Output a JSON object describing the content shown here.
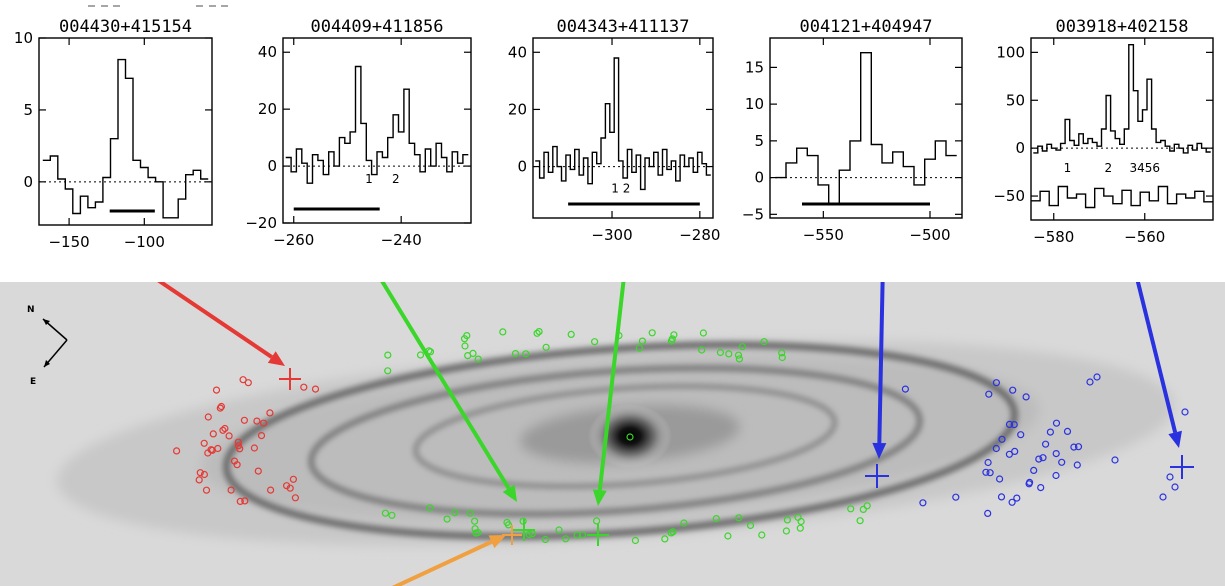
{
  "chart_data": [
    {
      "type": "line",
      "title": "004430+415154",
      "xlim": [
        -170,
        -55
      ],
      "ylim": [
        -3,
        10
      ],
      "xticks": [
        -150,
        -100
      ],
      "xtick_labels": [
        "−150",
        "−100"
      ],
      "yticks": [
        0,
        5,
        10
      ],
      "ytick_labels": [
        "0",
        "5",
        "10"
      ],
      "velocity": [
        -165,
        -160,
        -155,
        -150,
        -145,
        -140,
        -135,
        -130,
        -125,
        -120,
        -115,
        -110,
        -105,
        -100,
        -95,
        -90,
        -85,
        -80,
        -75,
        -70,
        -65,
        -60
      ],
      "flux": [
        1.5,
        1.8,
        0.2,
        -0.5,
        -2.2,
        -1.0,
        -1.8,
        -1.4,
        0.3,
        3.0,
        8.5,
        7.2,
        1.5,
        1.0,
        0.3,
        0.0,
        -2.5,
        -2.5,
        -1.2,
        0.5,
        0.8,
        0.2
      ],
      "range_bar": [
        -123,
        -93
      ],
      "line_labels": []
    },
    {
      "type": "line",
      "title": "004409+411856",
      "xlim": [
        -262,
        -227
      ],
      "ylim": [
        -20,
        45
      ],
      "xticks": [
        -260,
        -240
      ],
      "xtick_labels": [
        "−260",
        "−240"
      ],
      "yticks": [
        -20,
        0,
        20,
        40
      ],
      "ytick_labels": [
        "−20",
        "0",
        "20",
        "40"
      ],
      "velocity": [
        -261,
        -260,
        -259,
        -258,
        -257,
        -256,
        -255,
        -254,
        -253,
        -252,
        -251,
        -250,
        -249,
        -248,
        -247,
        -246,
        -245,
        -244,
        -243,
        -242,
        -241,
        -240,
        -239,
        -238,
        -237,
        -236,
        -235,
        -234,
        -233,
        -232,
        -231,
        -230,
        -229,
        -228
      ],
      "flux": [
        3,
        -2,
        6,
        1,
        -6,
        4,
        2,
        -3,
        5,
        0,
        10,
        8,
        12,
        35,
        15,
        2,
        -3,
        5,
        3,
        10,
        18,
        12,
        27,
        8,
        4,
        -2,
        6,
        0,
        8,
        3,
        -2,
        5,
        1,
        4
      ],
      "range_bar": [
        -260,
        -244
      ],
      "line_labels": [
        {
          "text": "1",
          "x": -246,
          "y": -6
        },
        {
          "text": "2",
          "x": -241,
          "y": -6
        }
      ]
    },
    {
      "type": "line",
      "title": "004343+411137",
      "xlim": [
        -318,
        -277
      ],
      "ylim": [
        -18,
        45
      ],
      "xticks": [
        -300,
        -280
      ],
      "xtick_labels": [
        "−300",
        "−280"
      ],
      "yticks": [
        0,
        20,
        40
      ],
      "ytick_labels": [
        "0",
        "20",
        "40"
      ],
      "velocity": [
        -317,
        -316,
        -315,
        -314,
        -313,
        -312,
        -311,
        -310,
        -309,
        -308,
        -307,
        -306,
        -305,
        -304,
        -303,
        -302,
        -301,
        -300,
        -299,
        -298,
        -297,
        -296,
        -295,
        -294,
        -293,
        -292,
        -291,
        -290,
        -289,
        -288,
        -287,
        -286,
        -285,
        -284,
        -283,
        -282,
        -281,
        -280,
        -279,
        -278
      ],
      "flux": [
        2,
        -4,
        5,
        -2,
        7,
        0,
        -5,
        4,
        -1,
        6,
        -3,
        3,
        -6,
        5,
        1,
        10,
        22,
        12,
        38,
        2,
        -4,
        6,
        -2,
        4,
        -8,
        3,
        0,
        5,
        -3,
        6,
        -1,
        2,
        -5,
        4,
        0,
        3,
        -2,
        5,
        1,
        -3
      ],
      "range_bar": [
        -310,
        -280
      ],
      "line_labels": [
        {
          "text": "1 2",
          "x": -298,
          "y": -9
        }
      ]
    },
    {
      "type": "line",
      "title": "004121+404947",
      "xlim": [
        -575,
        -485
      ],
      "ylim": [
        -5.5,
        19
      ],
      "xticks": [
        -550,
        -500
      ],
      "xtick_labels": [
        "−550",
        "−500"
      ],
      "yticks": [
        -5,
        0,
        5,
        10,
        15
      ],
      "ytick_labels": [
        "−5",
        "0",
        "5",
        "10",
        "15"
      ],
      "velocity": [
        -570,
        -565,
        -560,
        -555,
        -550,
        -545,
        -540,
        -535,
        -530,
        -525,
        -520,
        -515,
        -510,
        -505,
        -500,
        -495,
        -490
      ],
      "flux": [
        0,
        2.0,
        4.0,
        3.0,
        -1.0,
        -3.5,
        1.0,
        5.0,
        17.0,
        4.5,
        2.0,
        3.5,
        1.5,
        -1.0,
        2.5,
        5.0,
        3.0
      ],
      "range_bar": [
        -560,
        -500
      ],
      "line_labels": []
    },
    {
      "type": "line",
      "title": "003918+402158",
      "xlim": [
        -585,
        -545
      ],
      "ylim": [
        -75,
        115
      ],
      "xticks": [
        -580,
        -560
      ],
      "xtick_labels": [
        "−580",
        "−560"
      ],
      "yticks": [
        -50,
        0,
        50,
        100
      ],
      "ytick_labels": [
        "−50",
        "0",
        "50",
        "100"
      ],
      "series": [
        {
          "name": "spectrum",
          "velocity": [
            -584,
            -583,
            -582,
            -581,
            -580,
            -579,
            -578,
            -577,
            -576,
            -575,
            -574,
            -573,
            -572,
            -571,
            -570,
            -569,
            -568,
            -567,
            -566,
            -565,
            -564,
            -563,
            -562,
            -561,
            -560,
            -559,
            -558,
            -557,
            -556,
            -555,
            -554,
            -553,
            -552,
            -551,
            -550,
            -549,
            -548,
            -547,
            -546
          ],
          "flux": [
            -5,
            2,
            -3,
            4,
            0,
            -2,
            5,
            30,
            8,
            3,
            15,
            5,
            10,
            6,
            2,
            20,
            55,
            18,
            10,
            4,
            20,
            108,
            60,
            28,
            40,
            72,
            20,
            6,
            8,
            2,
            -3,
            4,
            0,
            -5,
            3,
            -2,
            5,
            0,
            -4
          ]
        },
        {
          "name": "offset",
          "velocity": [
            -584,
            -582,
            -580,
            -578,
            -576,
            -574,
            -572,
            -570,
            -568,
            -566,
            -564,
            -562,
            -560,
            -558,
            -556,
            -554,
            -552,
            -550,
            -548,
            -546
          ],
          "flux": [
            -55,
            -45,
            -60,
            -40,
            -52,
            -48,
            -62,
            -42,
            -50,
            -58,
            -44,
            -60,
            -46,
            -55,
            -40,
            -58,
            -48,
            -52,
            -45,
            -56
          ]
        }
      ],
      "range_bar": null,
      "line_labels": [
        {
          "text": "1",
          "x": -577,
          "y": -25
        },
        {
          "text": "2",
          "x": -568,
          "y": -25
        },
        {
          "text": "3456",
          "x": -560,
          "y": -25
        }
      ]
    }
  ],
  "galaxy": {
    "compass": {
      "north": "N",
      "east": "E"
    },
    "colors": {
      "red": "#e53935",
      "green": "#3ad62a",
      "blue": "#2a32e0",
      "orange": "#f0a040"
    }
  }
}
